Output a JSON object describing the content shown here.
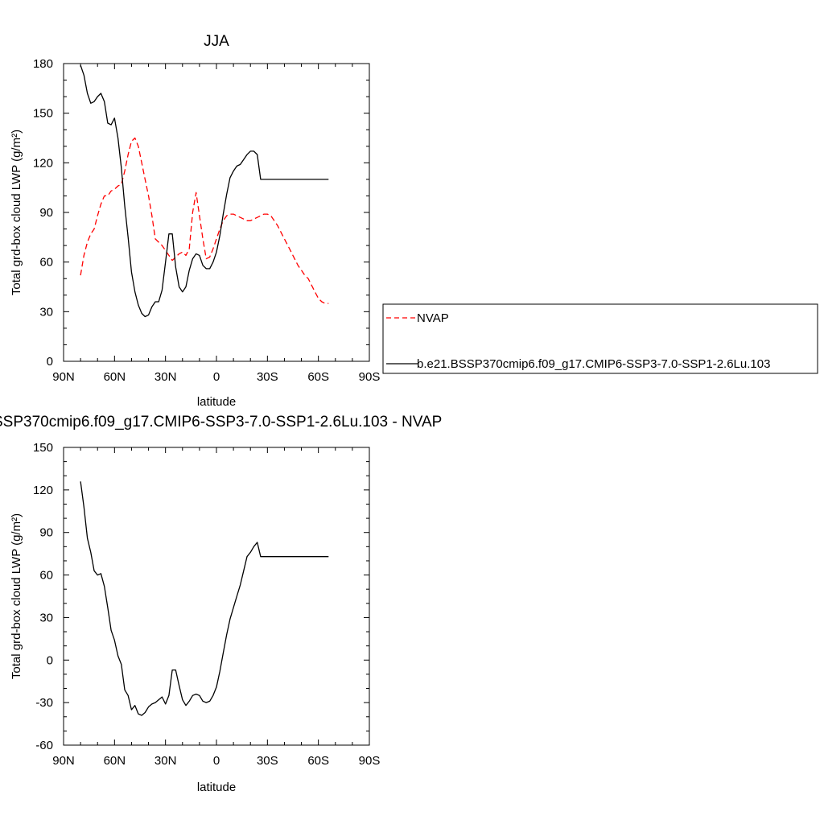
{
  "chart_data": [
    {
      "type": "line",
      "title": "JJA",
      "xlabel": "latitude",
      "ylabel": "Total grd-box cloud LWP (g/m²)",
      "xlim": [
        90,
        -90
      ],
      "ylim": [
        0,
        180
      ],
      "xticks": [
        90,
        60,
        30,
        0,
        -30,
        -60,
        -90
      ],
      "xtick_labels": [
        "90N",
        "60N",
        "30N",
        "0",
        "30S",
        "60S",
        "90S"
      ],
      "yticks": [
        0,
        30,
        60,
        90,
        120,
        150,
        180
      ],
      "ytick_labels": [
        "0",
        "30",
        "60",
        "90",
        "120",
        "150",
        "180"
      ],
      "legend_position": "right",
      "series": [
        {
          "name": "NVAP",
          "color": "#ff0000",
          "dash": "dashed",
          "x": [
            80,
            78,
            76,
            74,
            72,
            70,
            68,
            66,
            64,
            62,
            60,
            58,
            56,
            54,
            52,
            50,
            48,
            46,
            44,
            42,
            40,
            38,
            36,
            34,
            32,
            30,
            28,
            26,
            24,
            22,
            20,
            18,
            16,
            14,
            12,
            10,
            8,
            6,
            4,
            2,
            0,
            -2,
            -4,
            -6,
            -8,
            -10,
            -12,
            -14,
            -16,
            -18,
            -20,
            -22,
            -24,
            -26,
            -28,
            -30,
            -32,
            -34,
            -36,
            -38,
            -40,
            -42,
            -44,
            -46,
            -48,
            -50,
            -52,
            -54,
            -56,
            -58,
            -60,
            -62,
            -64,
            -66
          ],
          "y": [
            52,
            64,
            72,
            77,
            80,
            88,
            95,
            100,
            100,
            103,
            104,
            106,
            107,
            115,
            125,
            133,
            135,
            130,
            120,
            110,
            100,
            88,
            74,
            72,
            70,
            67,
            64,
            61,
            63,
            65,
            66,
            64,
            68,
            90,
            102,
            88,
            74,
            62,
            63,
            68,
            74,
            80,
            85,
            88,
            89,
            89,
            88,
            87,
            86,
            85,
            85,
            86,
            87,
            88,
            89,
            89,
            88,
            85,
            82,
            78,
            74,
            70,
            66,
            62,
            58,
            55,
            52,
            50,
            46,
            42,
            38,
            36,
            35,
            35
          ]
        },
        {
          "name": "b.e21.BSSP370cmip6.f09_g17.CMIP6-SSP3-7.0-SSP1-2.6Lu.103",
          "color": "#000000",
          "dash": "solid",
          "x": [
            80,
            78,
            76,
            74,
            72,
            70,
            68,
            66,
            64,
            62,
            60,
            58,
            56,
            54,
            52,
            50,
            48,
            46,
            44,
            42,
            40,
            38,
            36,
            34,
            32,
            30,
            28,
            26,
            24,
            22,
            20,
            18,
            16,
            14,
            12,
            10,
            8,
            6,
            4,
            2,
            0,
            -2,
            -4,
            -6,
            -8,
            -10,
            -12,
            -14,
            -16,
            -18,
            -20,
            -22,
            -24,
            -26,
            -28,
            -30,
            -32,
            -34,
            -36,
            -38,
            -40,
            -42,
            -44,
            -46,
            -48,
            -50,
            -52,
            -54,
            -56,
            -58,
            -60,
            -62,
            -64,
            -66
          ],
          "y": [
            179,
            173,
            162,
            156,
            157,
            160,
            162,
            157,
            144,
            143,
            147,
            135,
            117,
            94,
            75,
            54,
            42,
            34,
            29,
            27,
            28,
            33,
            36,
            36,
            43,
            60,
            77,
            77,
            57,
            45,
            42,
            45,
            55,
            62,
            65,
            64,
            58,
            56,
            56,
            60,
            66,
            76,
            89,
            101,
            111,
            115,
            118,
            119,
            122,
            125,
            127,
            127,
            125,
            110,
            110,
            110,
            110,
            110,
            110,
            110,
            110,
            110,
            110,
            110,
            110,
            110,
            110,
            110,
            110,
            110,
            110,
            110,
            110,
            110
          ]
        }
      ]
    },
    {
      "type": "line",
      "title": "SSP370cmip6.f09_g17.CMIP6-SSP3-7.0-SSP1-2.6Lu.103 - NVAP",
      "xlabel": "latitude",
      "ylabel": "Total grd-box cloud LWP (g/m²)",
      "xlim": [
        90,
        -90
      ],
      "ylim": [
        -60,
        150
      ],
      "xticks": [
        90,
        60,
        30,
        0,
        -30,
        -60,
        -90
      ],
      "xtick_labels": [
        "90N",
        "60N",
        "30N",
        "0",
        "30S",
        "60S",
        "90S"
      ],
      "yticks": [
        -60,
        -30,
        0,
        30,
        60,
        90,
        120,
        150
      ],
      "ytick_labels": [
        "-60",
        "-30",
        "0",
        "30",
        "60",
        "90",
        "120",
        "150"
      ],
      "series": [
        {
          "color": "#000000",
          "dash": "solid",
          "x": [
            80,
            78,
            76,
            74,
            72,
            70,
            68,
            66,
            64,
            62,
            60,
            58,
            56,
            54,
            52,
            50,
            48,
            46,
            44,
            42,
            40,
            38,
            36,
            34,
            32,
            30,
            28,
            26,
            24,
            22,
            20,
            18,
            16,
            14,
            12,
            10,
            8,
            6,
            4,
            2,
            0,
            -2,
            -4,
            -6,
            -8,
            -10,
            -12,
            -14,
            -16,
            -18,
            -20,
            -22,
            -24,
            -26,
            -28,
            -30,
            -32,
            -34,
            -36,
            -38,
            -40,
            -42,
            -44,
            -46,
            -48,
            -50,
            -52,
            -54,
            -56,
            -58,
            -60,
            -62,
            -64,
            -66
          ],
          "y": [
            126,
            108,
            86,
            76,
            63,
            60,
            61,
            52,
            37,
            21,
            14,
            3,
            -3,
            -21,
            -25,
            -35,
            -32,
            -38,
            -39,
            -37,
            -33,
            -31,
            -30,
            -28,
            -26,
            -31,
            -25,
            -7,
            -7,
            -18,
            -28,
            -32,
            -29,
            -25,
            -24,
            -25,
            -29,
            -30,
            -29,
            -25,
            -19,
            -8,
            5,
            18,
            29,
            37,
            45,
            53,
            63,
            73,
            76,
            80,
            83,
            73,
            73,
            73,
            73,
            73,
            73,
            73,
            73,
            73,
            73,
            73,
            73,
            73,
            73,
            73,
            73,
            73,
            73,
            73,
            73,
            73
          ]
        }
      ]
    }
  ]
}
